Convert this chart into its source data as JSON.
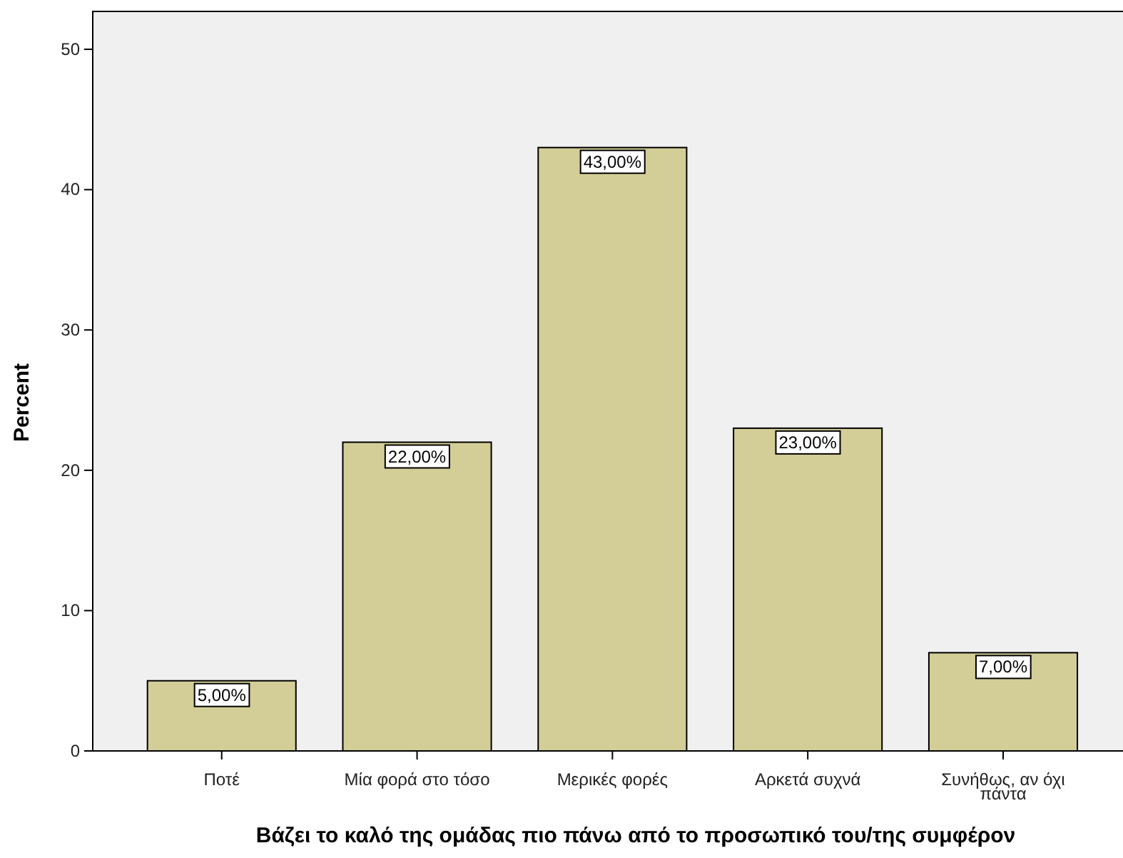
{
  "chart_data": {
    "type": "bar",
    "xlabel": "Βάζει το καλό της ομάδας πιο πάνω από το προσωπικό του/της συμφέρον",
    "ylabel": "Percent",
    "categories": [
      "Ποτέ",
      "Μία φορά στο τόσο",
      "Μερικές φορές",
      "Αρκετά συχνά",
      "Συνήθως, αν όχι πάντα"
    ],
    "values": [
      5,
      22,
      43,
      23,
      7
    ],
    "value_labels": [
      "5,00%",
      "22,00%",
      "43,00%",
      "23,00%",
      "7,00%"
    ],
    "color": "#d3ce97",
    "ylim": [
      0,
      52.7
    ],
    "yticks": [
      0,
      10,
      20,
      30,
      40,
      50
    ],
    "grid": false
  }
}
